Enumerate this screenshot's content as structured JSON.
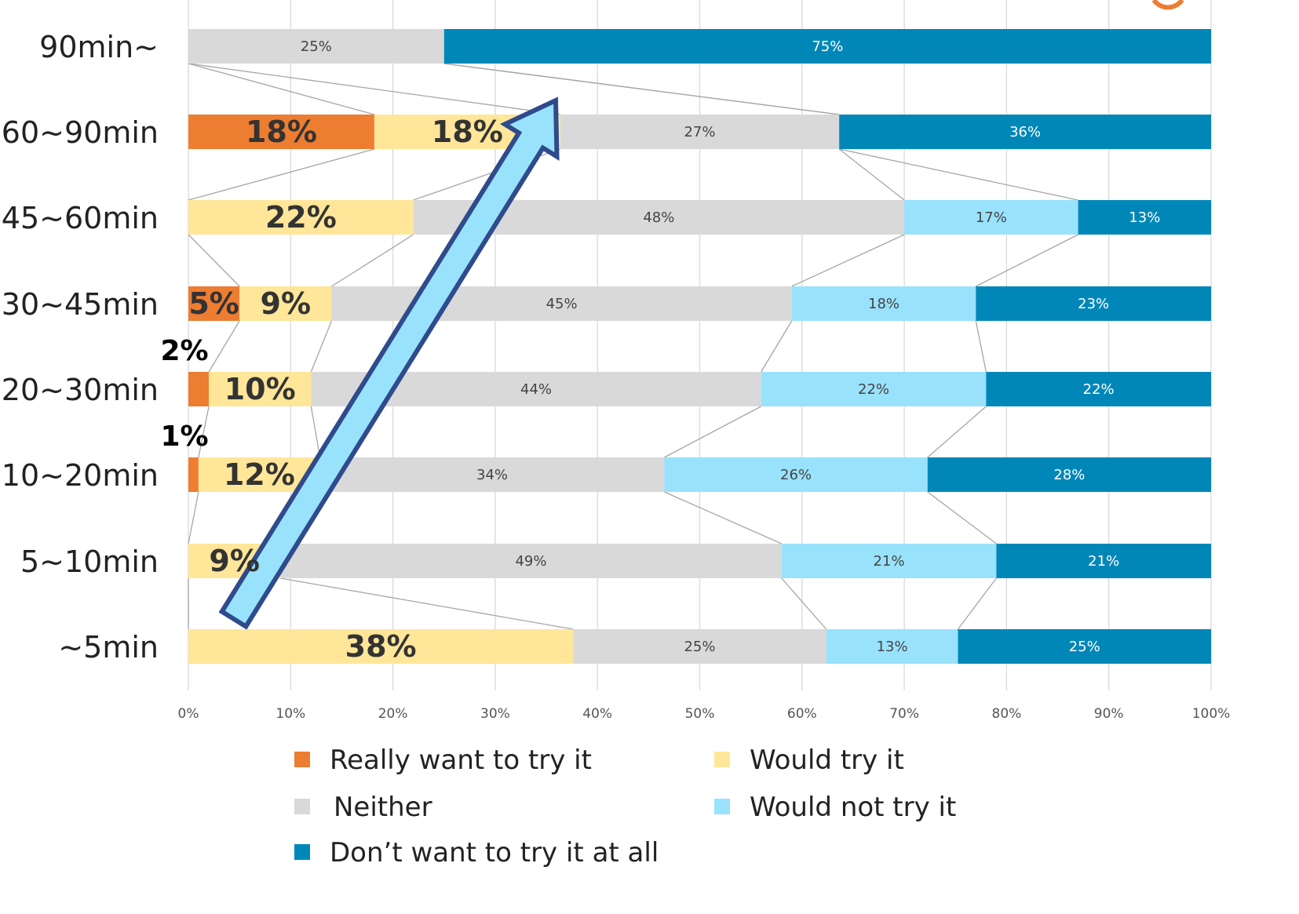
{
  "chart_data": {
    "type": "bar",
    "stacked": true,
    "orientation": "horizontal",
    "percent_stacked": true,
    "categories": [
      "90min~",
      "60~90min",
      "45~60min",
      "30~45min",
      "20~30min",
      "10~20min",
      "5~10min",
      "~5min"
    ],
    "series": [
      {
        "name": "Really want to try it",
        "color": "#ED7D31",
        "values": [
          0,
          18,
          0,
          5,
          2,
          1,
          0,
          0
        ]
      },
      {
        "name": "Would try it",
        "color": "#FFE699",
        "values": [
          0,
          18,
          22,
          9,
          10,
          12,
          9,
          38
        ]
      },
      {
        "name": "Neither",
        "color": "#D9D9D9",
        "values": [
          25,
          27,
          48,
          45,
          44,
          34,
          49,
          25
        ]
      },
      {
        "name": "Would not try it",
        "color": "#99E2FC",
        "values": [
          0,
          0,
          17,
          18,
          22,
          26,
          21,
          13
        ]
      },
      {
        "name": "Don’t want to try it at all",
        "color": "#0087B8",
        "values": [
          75,
          36,
          13,
          23,
          22,
          28,
          21,
          25
        ]
      }
    ],
    "segment_labels": [
      [
        null,
        null,
        "25%",
        null,
        "75%"
      ],
      [
        "18%",
        "18%",
        "27%",
        null,
        "36%"
      ],
      [
        null,
        "22%",
        "48%",
        "17%",
        "13%"
      ],
      [
        "5%",
        "9%",
        "45%",
        "18%",
        "23%"
      ],
      [
        "2%",
        "10%",
        "44%",
        "22%",
        "22%"
      ],
      [
        "1%",
        "12%",
        "34%",
        "26%",
        "28%"
      ],
      [
        null,
        "9%",
        "49%",
        "21%",
        "21%"
      ],
      [
        null,
        "38%",
        "25%",
        "13%",
        "25%"
      ]
    ],
    "xlim": [
      0,
      100
    ],
    "x_ticks": [
      "0%",
      "10%",
      "20%",
      "30%",
      "40%",
      "50%",
      "60%",
      "70%",
      "80%",
      "90%",
      "100%"
    ],
    "grid": true,
    "legend_position": "bottom",
    "series_lines": true,
    "annotation_arrow": "diagonal upward arrow from ~5min toward 60~90min",
    "arrow_fill": "#99E2FC",
    "arrow_stroke": "#2F4B8C"
  }
}
